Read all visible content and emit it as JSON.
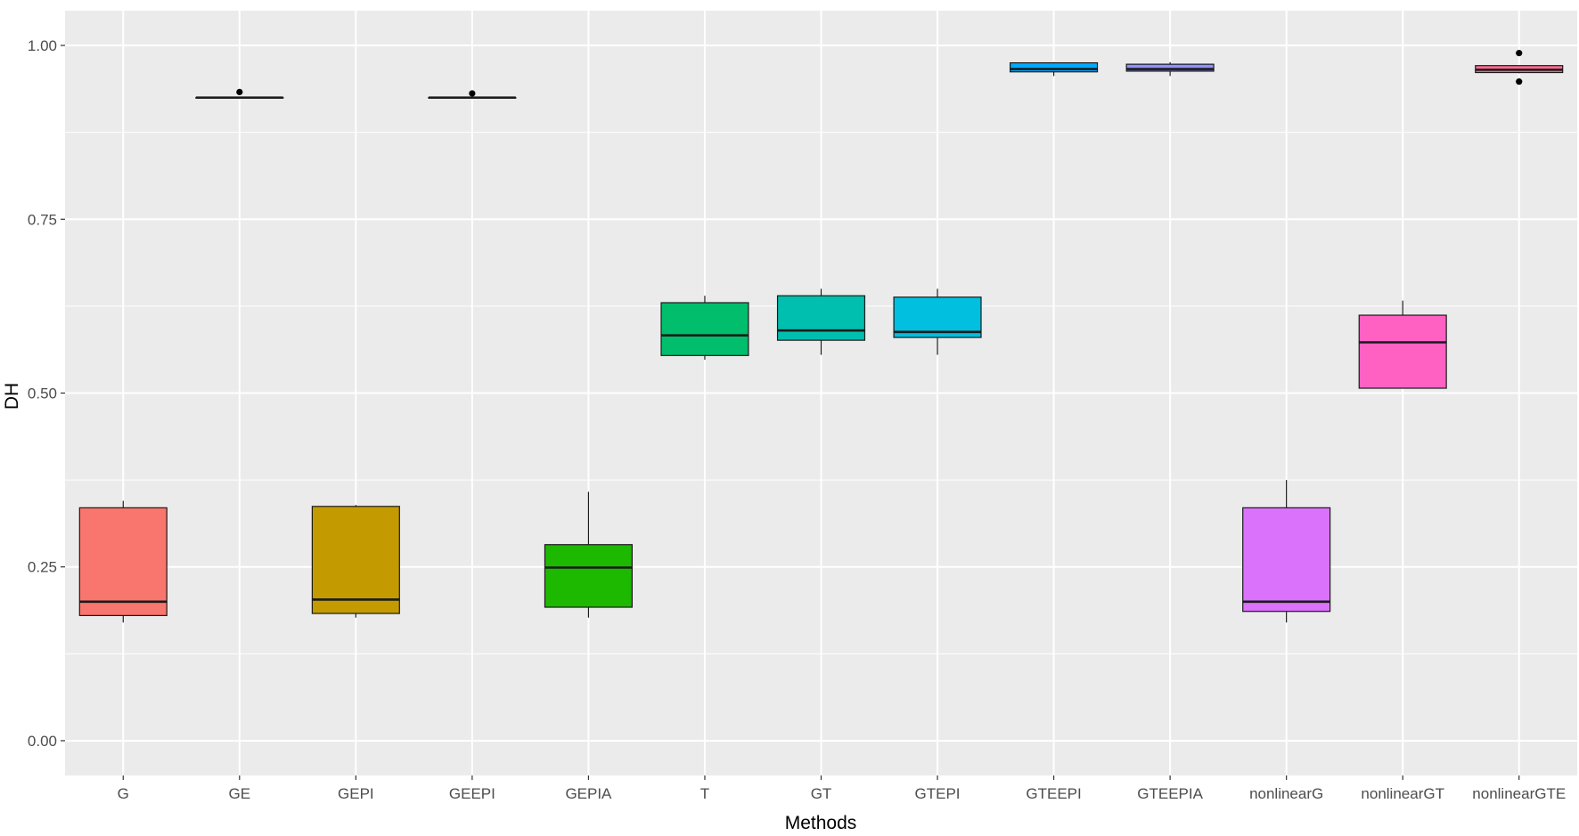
{
  "chart_data": {
    "type": "boxplot",
    "xlabel": "Methods",
    "ylabel": "DH",
    "ylim": [
      -0.05,
      1.05
    ],
    "yticks": [
      0.0,
      0.25,
      0.5,
      0.75,
      1.0
    ],
    "ytick_labels": [
      "0.00",
      "0.25",
      "0.50",
      "0.75",
      "1.00"
    ],
    "grid": true,
    "legend": "none",
    "categories": [
      "G",
      "GE",
      "GEPI",
      "GEEPI",
      "GEPIA",
      "T",
      "GT",
      "GTEPI",
      "GTEEPI",
      "GTEEPIA",
      "nonlinearG",
      "nonlinearGT",
      "nonlinearGTE"
    ],
    "boxes": [
      {
        "label": "G",
        "whisker_low": 0.17,
        "q1": 0.18,
        "median": 0.2,
        "q3": 0.335,
        "whisker_high": 0.345,
        "outliers": [],
        "color": "#F8766D"
      },
      {
        "label": "GE",
        "whisker_low": 0.925,
        "q1": 0.925,
        "median": 0.925,
        "q3": 0.925,
        "whisker_high": 0.925,
        "outliers": [
          0.933
        ],
        "color": "#DE8C00"
      },
      {
        "label": "GEPI",
        "whisker_low": 0.177,
        "q1": 0.183,
        "median": 0.203,
        "q3": 0.337,
        "whisker_high": 0.339,
        "outliers": [],
        "color": "#C39A00"
      },
      {
        "label": "GEEPI",
        "whisker_low": 0.925,
        "q1": 0.925,
        "median": 0.925,
        "q3": 0.925,
        "whisker_high": 0.925,
        "outliers": [
          0.931
        ],
        "color": "#7CAE00"
      },
      {
        "label": "GEPIA",
        "whisker_low": 0.177,
        "q1": 0.192,
        "median": 0.249,
        "q3": 0.282,
        "whisker_high": 0.358,
        "outliers": [],
        "color": "#1DB800"
      },
      {
        "label": "T",
        "whisker_low": 0.548,
        "q1": 0.554,
        "median": 0.583,
        "q3": 0.63,
        "whisker_high": 0.64,
        "outliers": [],
        "color": "#00BE6C"
      },
      {
        "label": "GT",
        "whisker_low": 0.555,
        "q1": 0.576,
        "median": 0.59,
        "q3": 0.64,
        "whisker_high": 0.65,
        "outliers": [],
        "color": "#00BFAE"
      },
      {
        "label": "GTEPI",
        "whisker_low": 0.555,
        "q1": 0.58,
        "median": 0.588,
        "q3": 0.638,
        "whisker_high": 0.65,
        "outliers": [],
        "color": "#00BFDF"
      },
      {
        "label": "GTEEPI",
        "whisker_low": 0.956,
        "q1": 0.962,
        "median": 0.966,
        "q3": 0.975,
        "whisker_high": 0.976,
        "outliers": [],
        "color": "#00A9FF"
      },
      {
        "label": "GTEEPIA",
        "whisker_low": 0.956,
        "q1": 0.963,
        "median": 0.966,
        "q3": 0.973,
        "whisker_high": 0.976,
        "outliers": [],
        "color": "#8F91FF"
      },
      {
        "label": "nonlinearG",
        "whisker_low": 0.17,
        "q1": 0.186,
        "median": 0.2,
        "q3": 0.335,
        "whisker_high": 0.375,
        "outliers": [],
        "color": "#DB72FB"
      },
      {
        "label": "nonlinearGT",
        "whisker_low": 0.507,
        "q1": 0.507,
        "median": 0.573,
        "q3": 0.612,
        "whisker_high": 0.633,
        "outliers": [],
        "color": "#FF61C3"
      },
      {
        "label": "nonlinearGTE",
        "whisker_low": 0.96,
        "q1": 0.961,
        "median": 0.965,
        "q3": 0.971,
        "whisker_high": 0.971,
        "outliers": [
          0.989,
          0.948
        ],
        "color": "#FF6C91"
      }
    ]
  }
}
